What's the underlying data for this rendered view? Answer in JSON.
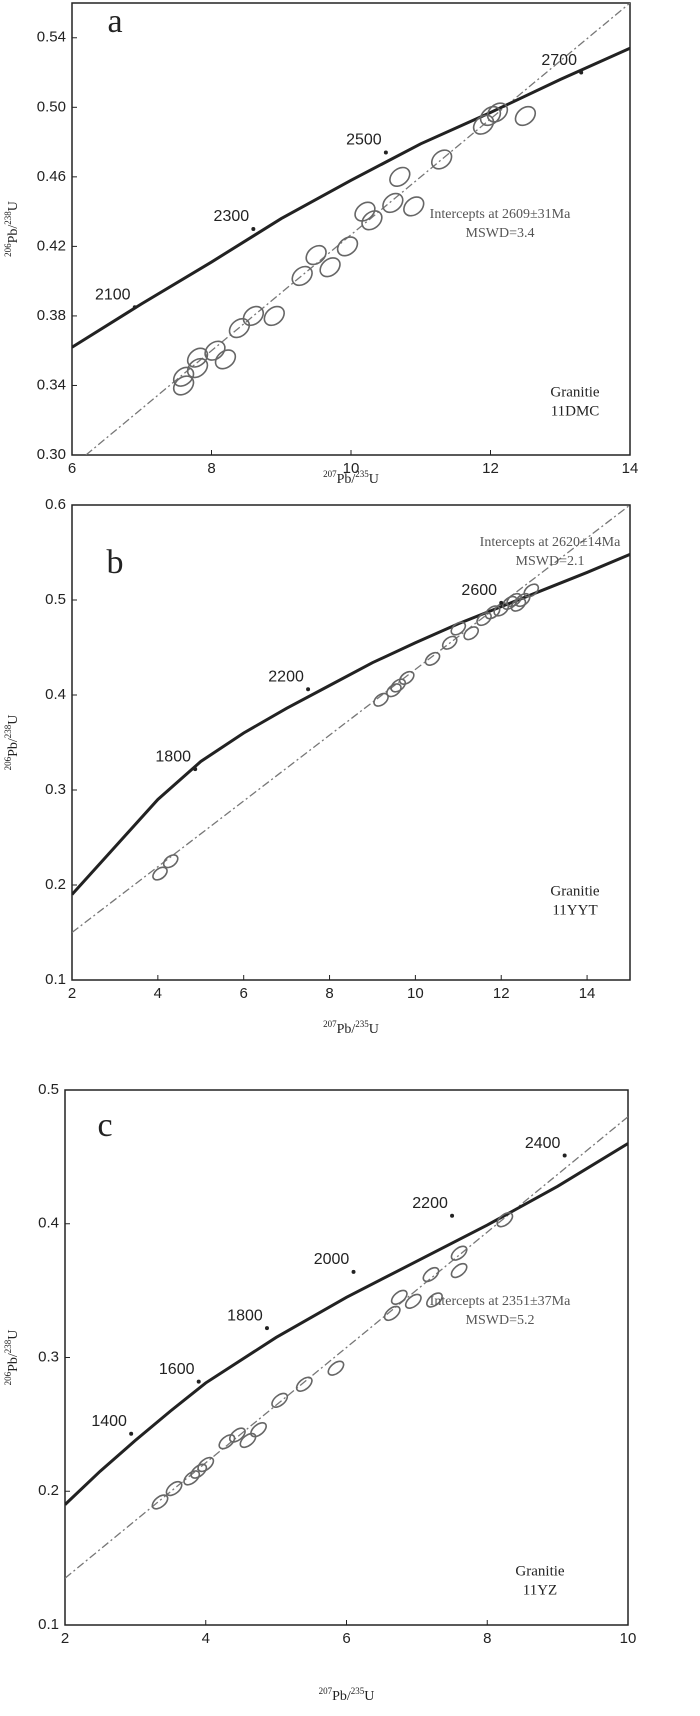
{
  "chart_data": [
    {
      "type": "scatter",
      "label": "a",
      "xlabel": [
        "207",
        "Pb/",
        "235",
        "U"
      ],
      "ylabel": [
        "206",
        "Pb/",
        "238",
        "U"
      ],
      "xlim": [
        6,
        14
      ],
      "ylim": [
        0.3,
        0.56
      ],
      "xticks": [
        6,
        8,
        10,
        12,
        14
      ],
      "yticks": [
        {
          "value": 0.3,
          "label": "0.30"
        },
        0.34,
        0.38,
        0.42,
        0.46,
        {
          "value": 0.5,
          "label": "0.50"
        },
        0.54
      ],
      "concordia": {
        "x": [
          6,
          7,
          8,
          9,
          10,
          11,
          12,
          13,
          14
        ],
        "y": [
          0.362,
          0.387,
          0.411,
          0.436,
          0.458,
          0.479,
          0.497,
          0.516,
          0.534
        ]
      },
      "ages": [
        2100,
        2300,
        2500,
        2700
      ],
      "age_x": [
        6.9,
        8.6,
        10.5,
        13.3
      ],
      "age_y": [
        0.385,
        0.43,
        0.474,
        0.52
      ],
      "discordia": {
        "x": [
          6.2,
          14
        ],
        "y": [
          0.3,
          0.56
        ]
      },
      "points": {
        "x": [
          7.6,
          7.6,
          7.8,
          7.8,
          8.05,
          8.2,
          8.4,
          8.6,
          8.9,
          9.3,
          9.5,
          9.7,
          9.95,
          10.2,
          10.3,
          10.6,
          10.7,
          10.9,
          11.3,
          11.9,
          12.0,
          12.1,
          12.5
        ],
        "y": [
          0.345,
          0.34,
          0.35,
          0.356,
          0.36,
          0.355,
          0.373,
          0.38,
          0.38,
          0.403,
          0.415,
          0.408,
          0.42,
          0.44,
          0.435,
          0.445,
          0.46,
          0.443,
          0.47,
          0.49,
          0.495,
          0.497,
          0.495
        ]
      },
      "annotations": [
        "Intercepts at 2609±31Ma",
        "MSWD=3.4"
      ],
      "sample": [
        "Granitie",
        "11DMC"
      ]
    },
    {
      "type": "scatter",
      "label": "b",
      "xlabel": [
        "207",
        "Pb/",
        "235",
        "U"
      ],
      "ylabel": [
        "206",
        "Pb/",
        "238",
        "U"
      ],
      "xlim": [
        2,
        15
      ],
      "ylim": [
        0.1,
        0.6
      ],
      "xticks": [
        2,
        4,
        6,
        8,
        10,
        12,
        14
      ],
      "yticks": [
        0.1,
        0.2,
        0.3,
        0.4,
        0.5,
        0.6
      ],
      "concordia": {
        "x": [
          2,
          3,
          4,
          5,
          6,
          7,
          8,
          9,
          10,
          11,
          12,
          13,
          14,
          15
        ],
        "y": [
          0.19,
          0.24,
          0.29,
          0.33,
          0.36,
          0.386,
          0.41,
          0.434,
          0.455,
          0.475,
          0.493,
          0.511,
          0.529,
          0.548
        ]
      },
      "ages": [
        1800,
        2200,
        2600
      ],
      "age_x": [
        4.87,
        7.5,
        12.0
      ],
      "age_y": [
        0.322,
        0.406,
        0.497
      ],
      "discordia": {
        "x": [
          2,
          15
        ],
        "y": [
          0.15,
          0.6
        ]
      },
      "points": {
        "x": [
          4.05,
          4.3,
          9.2,
          9.5,
          9.6,
          9.8,
          10.4,
          10.8,
          11.0,
          11.3,
          11.6,
          11.8,
          12.0,
          12.2,
          12.3,
          12.5,
          12.7,
          12.4
        ],
        "y": [
          0.212,
          0.225,
          0.395,
          0.405,
          0.41,
          0.418,
          0.438,
          0.455,
          0.47,
          0.465,
          0.48,
          0.487,
          0.49,
          0.497,
          0.5,
          0.5,
          0.51,
          0.495
        ]
      },
      "annotations": [
        "Intercepts at 2620±14Ma",
        "MSWD=2.1"
      ],
      "sample": [
        "Granitie",
        "11YYT"
      ]
    },
    {
      "type": "scatter",
      "label": "c",
      "xlabel": [
        "207",
        "Pb/",
        "235",
        "U"
      ],
      "ylabel": [
        "206",
        "Pb/",
        "238",
        "U"
      ],
      "xlim": [
        2,
        10
      ],
      "ylim": [
        0.1,
        0.5
      ],
      "xticks": [
        2,
        4,
        6,
        8,
        10
      ],
      "yticks": [
        0.1,
        0.2,
        0.3,
        0.4,
        0.5
      ],
      "concordia": {
        "x": [
          2,
          2.5,
          3,
          3.5,
          4,
          5,
          6,
          7,
          8,
          9,
          10
        ],
        "y": [
          0.19,
          0.215,
          0.238,
          0.26,
          0.281,
          0.315,
          0.345,
          0.372,
          0.399,
          0.428,
          0.46
        ]
      },
      "ages": [
        1400,
        1600,
        1800,
        2000,
        2200,
        2400
      ],
      "age_x": [
        2.94,
        3.9,
        4.87,
        6.1,
        7.5,
        9.1
      ],
      "age_y": [
        0.243,
        0.282,
        0.322,
        0.364,
        0.406,
        0.451
      ],
      "discordia": {
        "x": [
          2,
          10
        ],
        "y": [
          0.135,
          0.48
        ]
      },
      "points": {
        "x": [
          3.35,
          3.55,
          3.8,
          3.9,
          4.0,
          4.3,
          4.45,
          4.6,
          4.75,
          5.05,
          5.4,
          5.85,
          6.65,
          6.75,
          6.95,
          7.2,
          7.25,
          7.6,
          7.6,
          8.25
        ],
        "y": [
          0.192,
          0.202,
          0.21,
          0.215,
          0.22,
          0.237,
          0.242,
          0.238,
          0.246,
          0.268,
          0.28,
          0.292,
          0.333,
          0.345,
          0.342,
          0.362,
          0.343,
          0.378,
          0.365,
          0.403
        ]
      },
      "annotations": [
        "Intercepts at 2351±37Ma",
        "MSWD=5.2"
      ],
      "sample": [
        "Granitie",
        "11YZ"
      ]
    }
  ]
}
